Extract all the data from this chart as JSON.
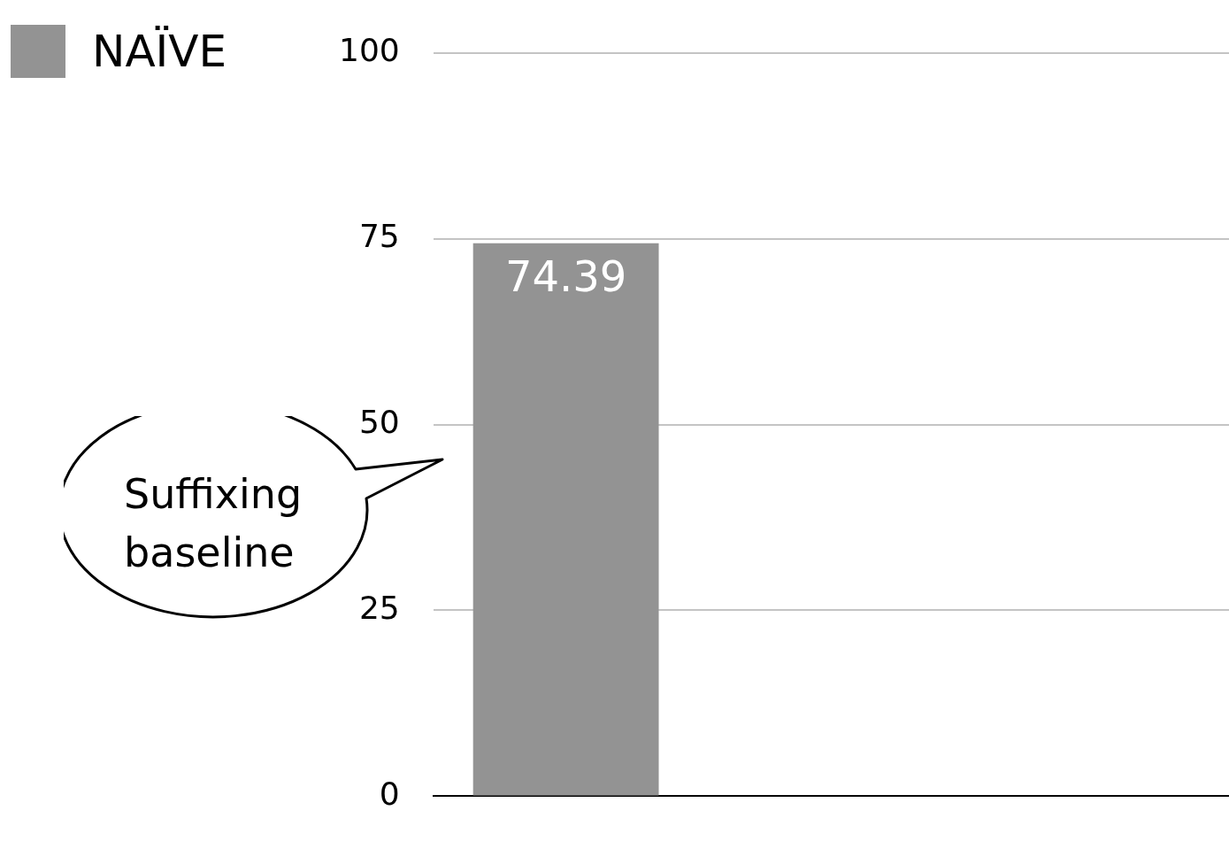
{
  "chart_data": {
    "type": "bar",
    "categories": [
      null,
      null,
      null
    ],
    "series": [
      {
        "name": "NAÏVE",
        "color": "#939393",
        "values": [
          74.39,
          null,
          null
        ]
      }
    ],
    "ylim": [
      0,
      100
    ],
    "yticks": [
      0,
      25,
      50,
      75,
      100
    ],
    "grid": "y",
    "legend": "top left",
    "data_labels": true,
    "annotations": [
      "Suffixing baseline"
    ]
  }
}
